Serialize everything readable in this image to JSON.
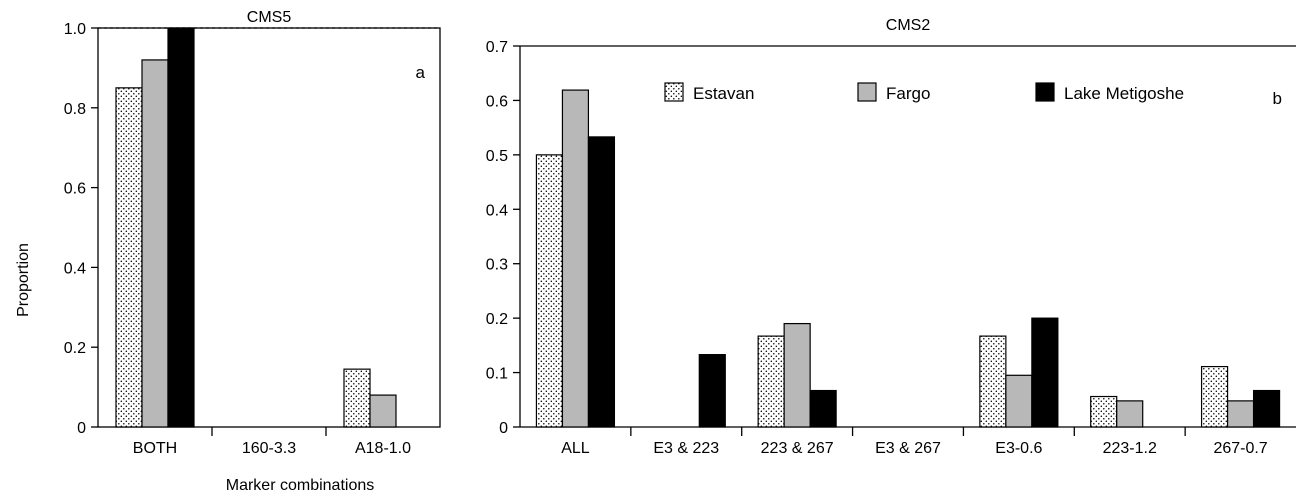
{
  "figure": {
    "ylabel": "Proportion",
    "xlabel": "Marker combinations"
  },
  "chart_data": [
    {
      "type": "bar",
      "title": "CMS5",
      "panel_letter": "a",
      "ylabel": "Proportion",
      "ylim": [
        0,
        1.0
      ],
      "yticks": [
        "0",
        "0.2",
        "0.4",
        "0.6",
        "0.8",
        "1.0"
      ],
      "ytick_values": [
        0,
        0.2,
        0.4,
        0.6,
        0.8,
        1.0
      ],
      "reference_line": 1.0,
      "categories": [
        "BOTH",
        "160-3.3",
        "A18-1.0"
      ],
      "series": [
        {
          "name": "Estavan",
          "values": [
            0.85,
            0,
            0.145
          ]
        },
        {
          "name": "Fargo",
          "values": [
            0.92,
            0,
            0.08
          ]
        },
        {
          "name": "Lake Metigoshe",
          "values": [
            1.0,
            0,
            0
          ]
        }
      ],
      "grid": false
    },
    {
      "type": "bar",
      "title": "CMS2",
      "panel_letter": "b",
      "ylim": [
        0,
        0.7
      ],
      "yticks": [
        "0",
        "0.1",
        "0.2",
        "0.3",
        "0.4",
        "0.5",
        "0.6",
        "0.7"
      ],
      "ytick_values": [
        0,
        0.1,
        0.2,
        0.3,
        0.4,
        0.5,
        0.6,
        0.7
      ],
      "categories": [
        "ALL",
        "E3 & 223",
        "223 & 267",
        "E3 & 267",
        "E3-0.6",
        "223-1.2",
        "267-0.7"
      ],
      "series": [
        {
          "name": "Estavan",
          "values": [
            0.5,
            0,
            0.167,
            0,
            0.167,
            0.056,
            0.111
          ]
        },
        {
          "name": "Fargo",
          "values": [
            0.619,
            0,
            0.19,
            0,
            0.095,
            0.048,
            0.048
          ]
        },
        {
          "name": "Lake Metigoshe",
          "values": [
            0.533,
            0.133,
            0.067,
            0,
            0.2,
            0,
            0.067
          ]
        }
      ],
      "legend": [
        "Estavan",
        "Fargo",
        "Lake Metigoshe"
      ],
      "legend_position": "top",
      "grid": false
    }
  ]
}
